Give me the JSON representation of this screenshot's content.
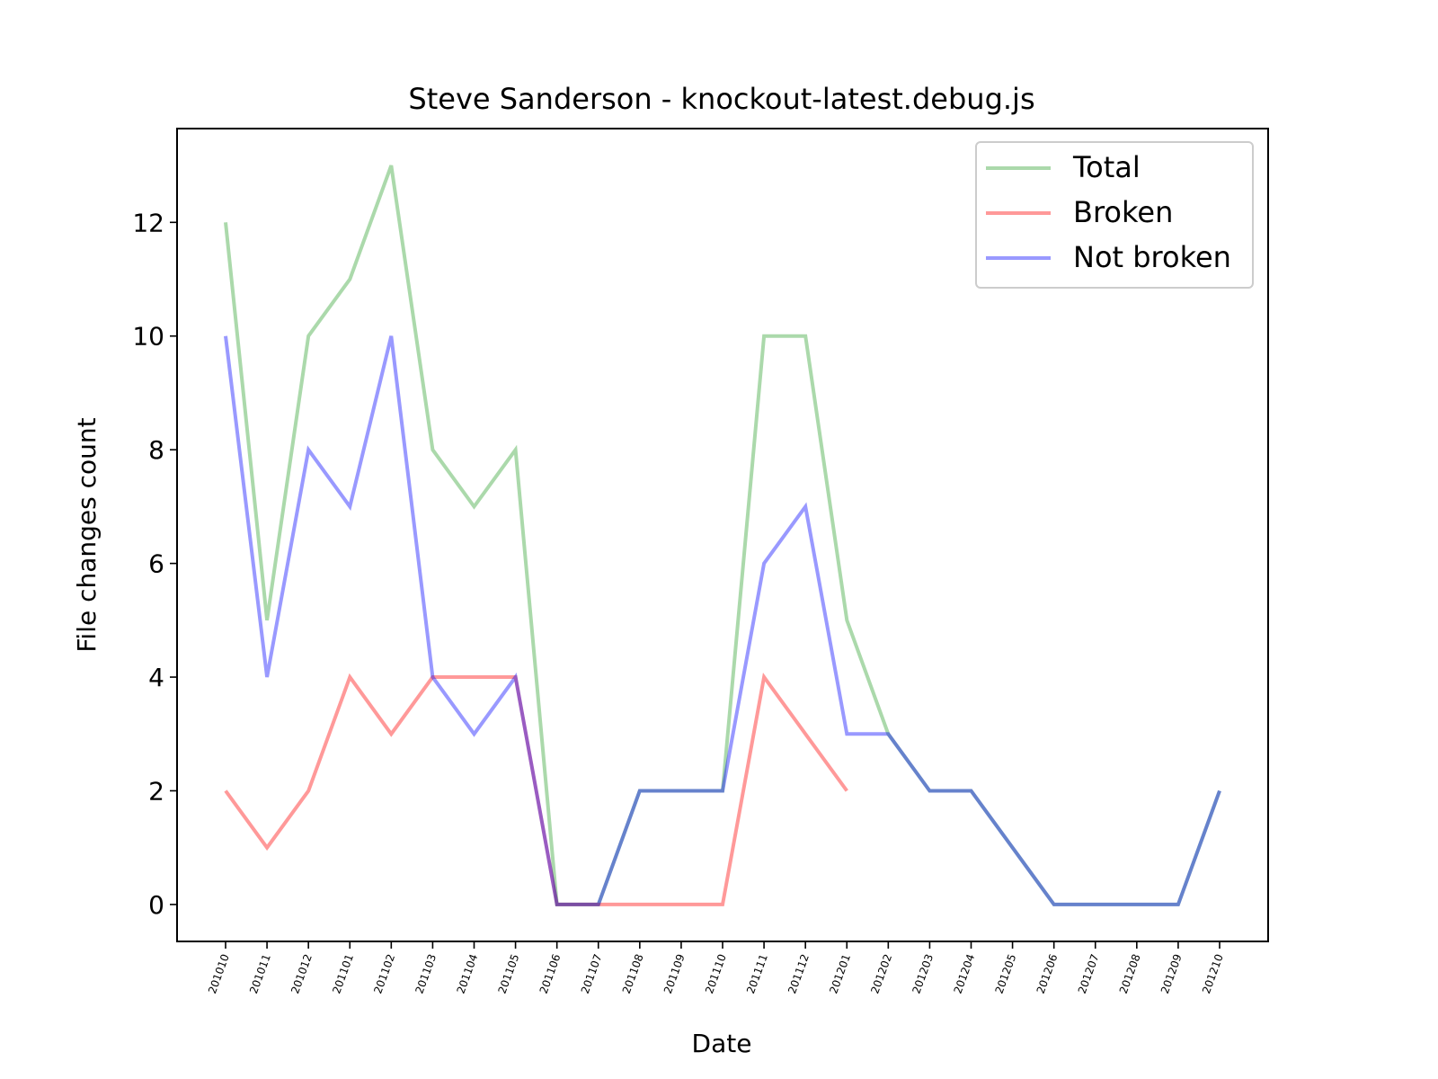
{
  "chart_data": {
    "type": "line",
    "title": "Steve Sanderson - knockout-latest.debug.js",
    "xlabel": "Date",
    "ylabel": "File changes count",
    "categories": [
      "201010",
      "201011",
      "201012",
      "201101",
      "201102",
      "201103",
      "201104",
      "201105",
      "201106",
      "201107",
      "201108",
      "201109",
      "201110",
      "201111",
      "201112",
      "201201",
      "201202",
      "201203",
      "201204",
      "201205",
      "201206",
      "201207",
      "201208",
      "201209",
      "201210"
    ],
    "yticks": [
      0,
      2,
      4,
      6,
      8,
      10,
      12
    ],
    "ylim": [
      -0.65,
      13.65
    ],
    "grid": false,
    "legend_position": "top-right",
    "series": [
      {
        "name": "Total",
        "color": "#2ca02c",
        "values": [
          12,
          5,
          10,
          11,
          13,
          8,
          7,
          8,
          0,
          0,
          2,
          2,
          2,
          10,
          10,
          5,
          3,
          2,
          2,
          1,
          0,
          0,
          0,
          0,
          2
        ]
      },
      {
        "name": "Broken",
        "color": "#ff0000",
        "values": [
          2,
          1,
          2,
          4,
          3,
          4,
          4,
          4,
          0,
          0,
          0,
          0,
          0,
          4,
          3,
          2,
          null,
          null,
          null,
          null,
          null,
          null,
          null,
          null,
          null
        ]
      },
      {
        "name": "Not broken",
        "color": "#0000ff",
        "values": [
          10,
          4,
          8,
          7,
          10,
          4,
          3,
          4,
          0,
          0,
          2,
          2,
          2,
          6,
          7,
          3,
          3,
          2,
          2,
          1,
          0,
          0,
          0,
          0,
          2
        ]
      }
    ]
  }
}
